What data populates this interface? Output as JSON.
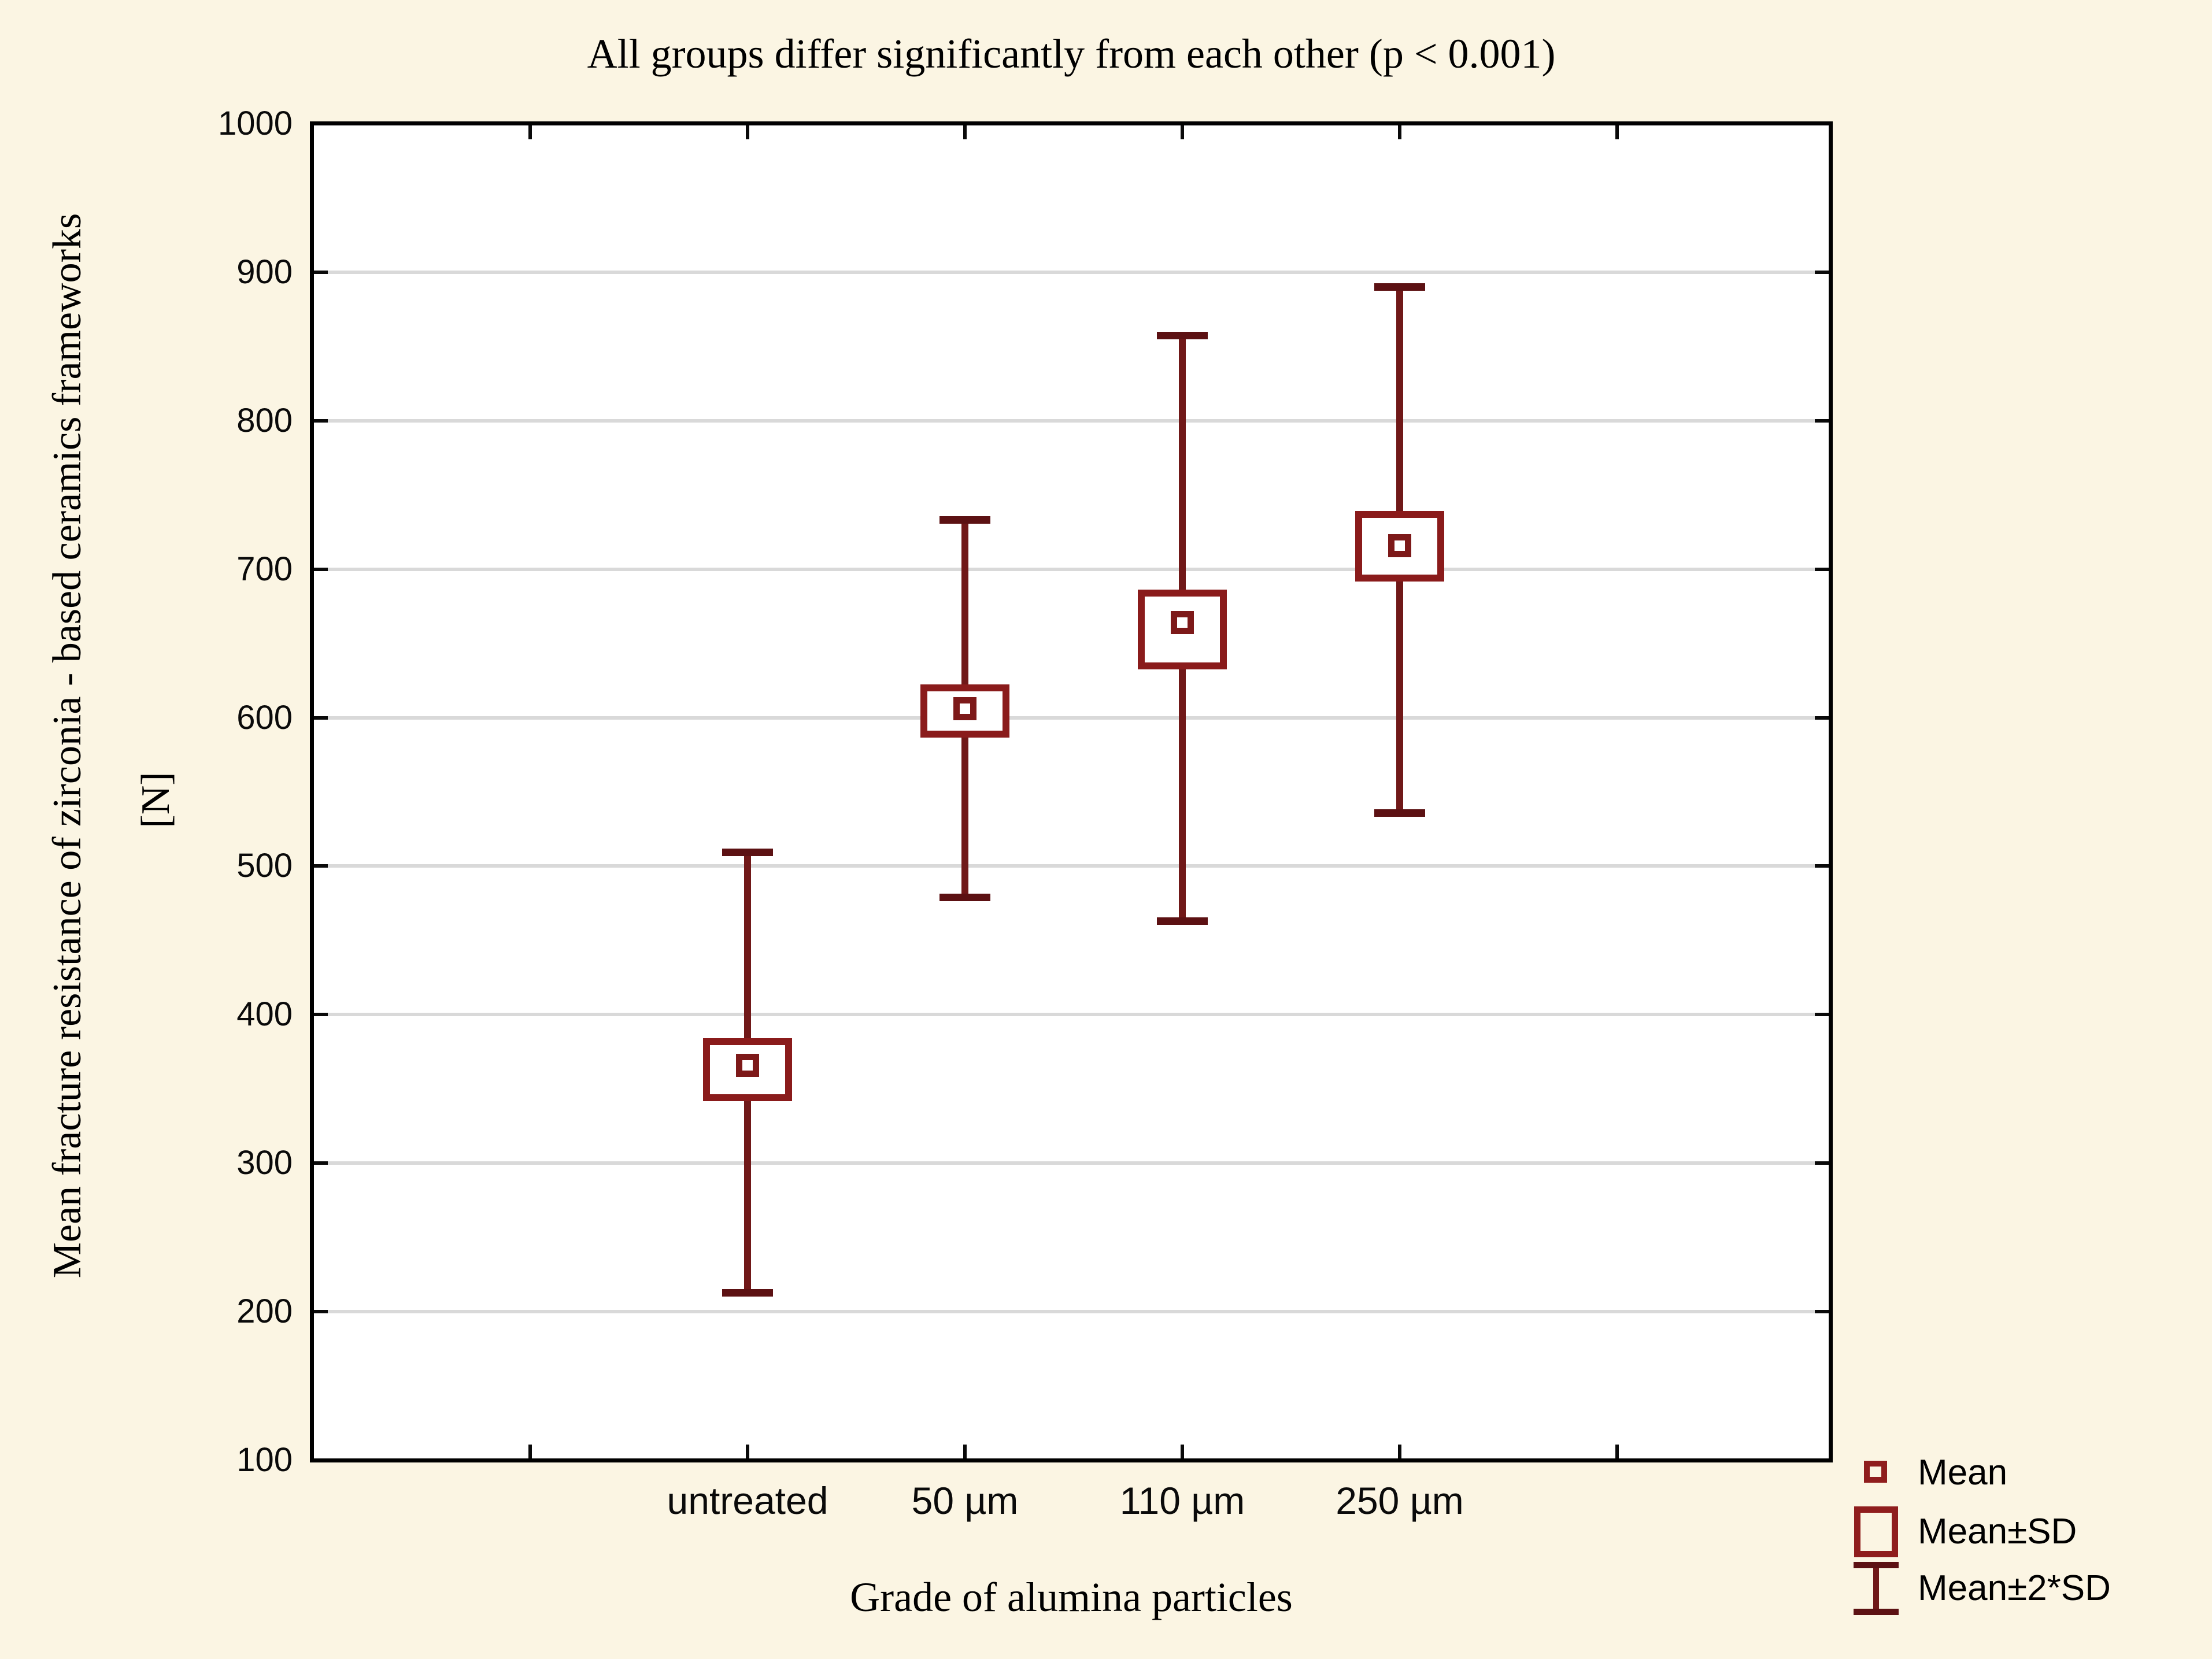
{
  "chart_data": {
    "type": "box-whisker-means",
    "title": "All groups differ significantly from each other (p < 0.001)",
    "xlabel": "Grade of alumina particles",
    "ylabel": "Mean fracture resistance of zirconia - based ceramics frameworks",
    "ylabel_unit": "[N]",
    "ylim": [
      100,
      1000
    ],
    "yticks": [
      100,
      200,
      300,
      400,
      500,
      600,
      700,
      800,
      900,
      1000
    ],
    "grid": "horizontal",
    "x_slots": 6,
    "labeled_slots": [
      1,
      2,
      3,
      4
    ],
    "categories": [
      "untreated",
      "50 µm",
      "110 µm",
      "250 µm"
    ],
    "groups": [
      {
        "category": "untreated",
        "mean": 366,
        "sd_low": 344,
        "sd_high": 382,
        "sd2_low": 213,
        "sd2_high": 509
      },
      {
        "category": "50 µm",
        "mean": 606,
        "sd_low": 589,
        "sd_high": 620,
        "sd2_low": 479,
        "sd2_high": 733
      },
      {
        "category": "110 µm",
        "mean": 664,
        "sd_low": 635,
        "sd_high": 684,
        "sd2_low": 463,
        "sd2_high": 857
      },
      {
        "category": "250 µm",
        "mean": 716,
        "sd_low": 694,
        "sd_high": 737,
        "sd2_low": 536,
        "sd2_high": 890
      }
    ],
    "legend": {
      "position": "bottom-right",
      "items": [
        {
          "label": "Mean",
          "symbol": "small-square"
        },
        {
          "label": "Mean±SD",
          "symbol": "box"
        },
        {
          "label": "Mean±2*SD",
          "symbol": "whisker"
        }
      ]
    },
    "colors": {
      "background": "#fbf5e3",
      "plot_background": "#ffffff",
      "frame": "#000000",
      "gridline": "#d9d9d9",
      "box_stroke": "#8a1b1b",
      "whisker_stroke": "#701818",
      "whisker_cap": "#5c1113",
      "mean_stroke": "#7d1919",
      "text": "#000000"
    }
  }
}
